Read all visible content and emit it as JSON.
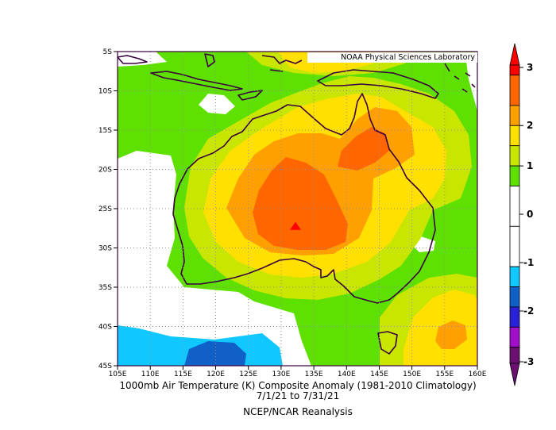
{
  "map": {
    "credit": "NOAA Physical Sciences Laboratory",
    "lat_labels": [
      "5S",
      "10S",
      "15S",
      "20S",
      "25S",
      "30S",
      "35S",
      "40S",
      "45S"
    ],
    "lon_labels": [
      "105E",
      "110E",
      "115E",
      "120E",
      "125E",
      "130E",
      "135E",
      "140E",
      "145E",
      "150E",
      "155E",
      "160E"
    ],
    "extent": {
      "lon_min": 105,
      "lon_max": 160,
      "lat_min": -45,
      "lat_max": -5
    },
    "max_marker": {
      "lon": 132.2,
      "lat": -27.2,
      "color": "#ff0000"
    }
  },
  "colorbar": {
    "levels": [
      "3",
      "2",
      "1",
      "0",
      "-1",
      "-2",
      "-3"
    ],
    "colors": [
      "#ff0000",
      "#ff6600",
      "#ffa000",
      "#ffe000",
      "#c8e600",
      "#5ee000",
      "#ffffff",
      "#ffffff",
      "#10c8ff",
      "#1060c8",
      "#2a20d8",
      "#a010c8",
      "#6a1070"
    ]
  },
  "caption": {
    "line1": "1000mb Air Temperature (K) Composite Anomaly (1981-2010 Climatology)",
    "line2": "7/1/21  to 7/31/21",
    "line3": "NCEP/NCAR Reanalysis"
  },
  "palette": {
    "green": "#5ee000",
    "yellowgreen": "#c8e600",
    "yellow": "#ffe000",
    "lightorange": "#ffa000",
    "orange": "#ff6600",
    "cyan": "#10c8ff",
    "blue": "#1060c8",
    "white": "#ffffff"
  }
}
